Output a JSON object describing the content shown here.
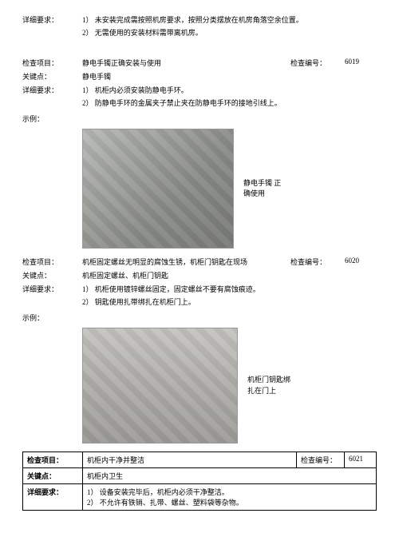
{
  "top": {
    "label": "详细要求：",
    "items": [
      "1）  未安装完成需按照机房要求，按照分类摆放在机房角落空余位置。",
      "2）  无需使用的安装材料需带离机房。"
    ]
  },
  "s1": {
    "project_label": "检查项目：",
    "project": "静电手镯正确安装与使用",
    "num_label": "检查编号：",
    "num": "6019",
    "key_label": "关键点：",
    "key": "静电手镯",
    "detail_label": "详细要求：",
    "details": [
      "1）  机柜内必须安装防静电手环。",
      "2）  防静电手环的金属夹子禁止夹在防静电手环的接地引线上。"
    ],
    "example_label": "示例：",
    "callout": "静电手镯 正确使用"
  },
  "s2": {
    "project_label": "检查项目：",
    "project": "机柜固定螺丝无明显的腐蚀生锈，机柜门钥匙在现场",
    "num_label": "检查编号：",
    "num": "6020",
    "key_label": "关键点：",
    "key": "机柜固定螺丝、机柜门钥匙",
    "detail_label": "详细要求：",
    "details": [
      "1）  机柜使用镀锌螺丝固定，固定螺丝不要有腐蚀痕迹。",
      "2）    钥匙使用扎带绑扎在机柜门上。"
    ],
    "example_label": "示例：",
    "callout": "机柜门钥匙绑扎在门上"
  },
  "s3": {
    "r1c1": "检查项目：",
    "r1c2": "机柜内干净并整洁",
    "r1c3": "检查编号：",
    "r1c4": "6021",
    "r2c1": "关键点：",
    "r2c2": "机柜内卫生",
    "r3c1": "详细要求：",
    "r3l1": "1）  设备安装完毕后，机柜内必须干净整洁。",
    "r3l2": "2）  不允许有铁销、扎带、螺丝、塑料袋等杂物。"
  }
}
